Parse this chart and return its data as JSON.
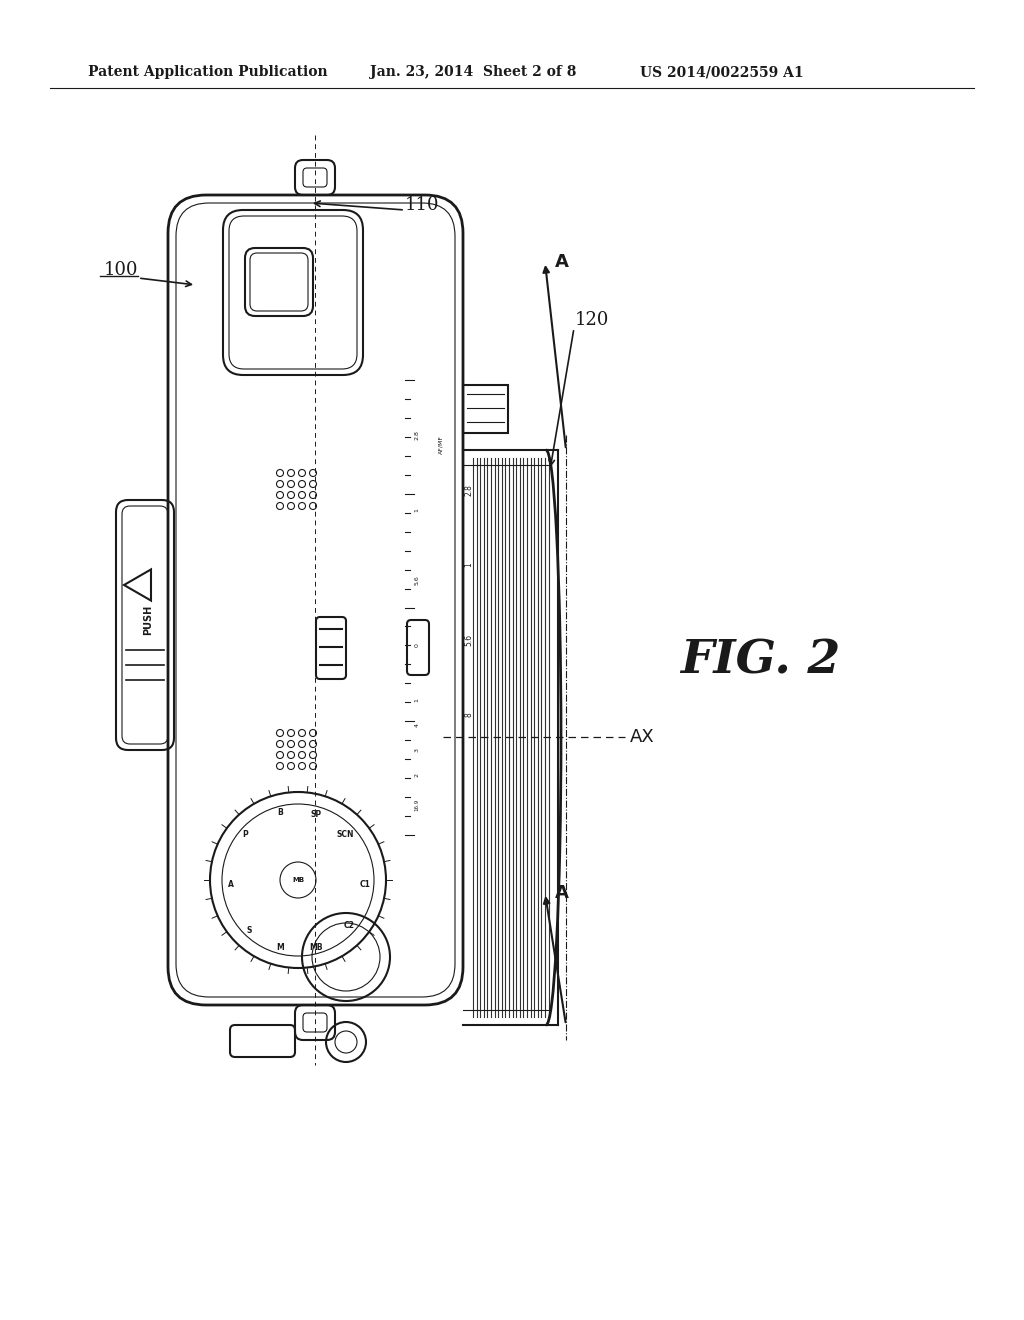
{
  "bg_color": "#ffffff",
  "line_color": "#1a1a1a",
  "fig_width": 10.24,
  "fig_height": 13.2,
  "header_text": "Patent Application Publication",
  "header_date": "Jan. 23, 2014  Sheet 2 of 8",
  "header_patent": "US 2014/0022559 A1",
  "fig_label": "FIG. 2",
  "label_100": "100",
  "label_110": "110",
  "label_120": "120",
  "label_A1": "A",
  "label_A2": "A",
  "label_AX": "AX"
}
